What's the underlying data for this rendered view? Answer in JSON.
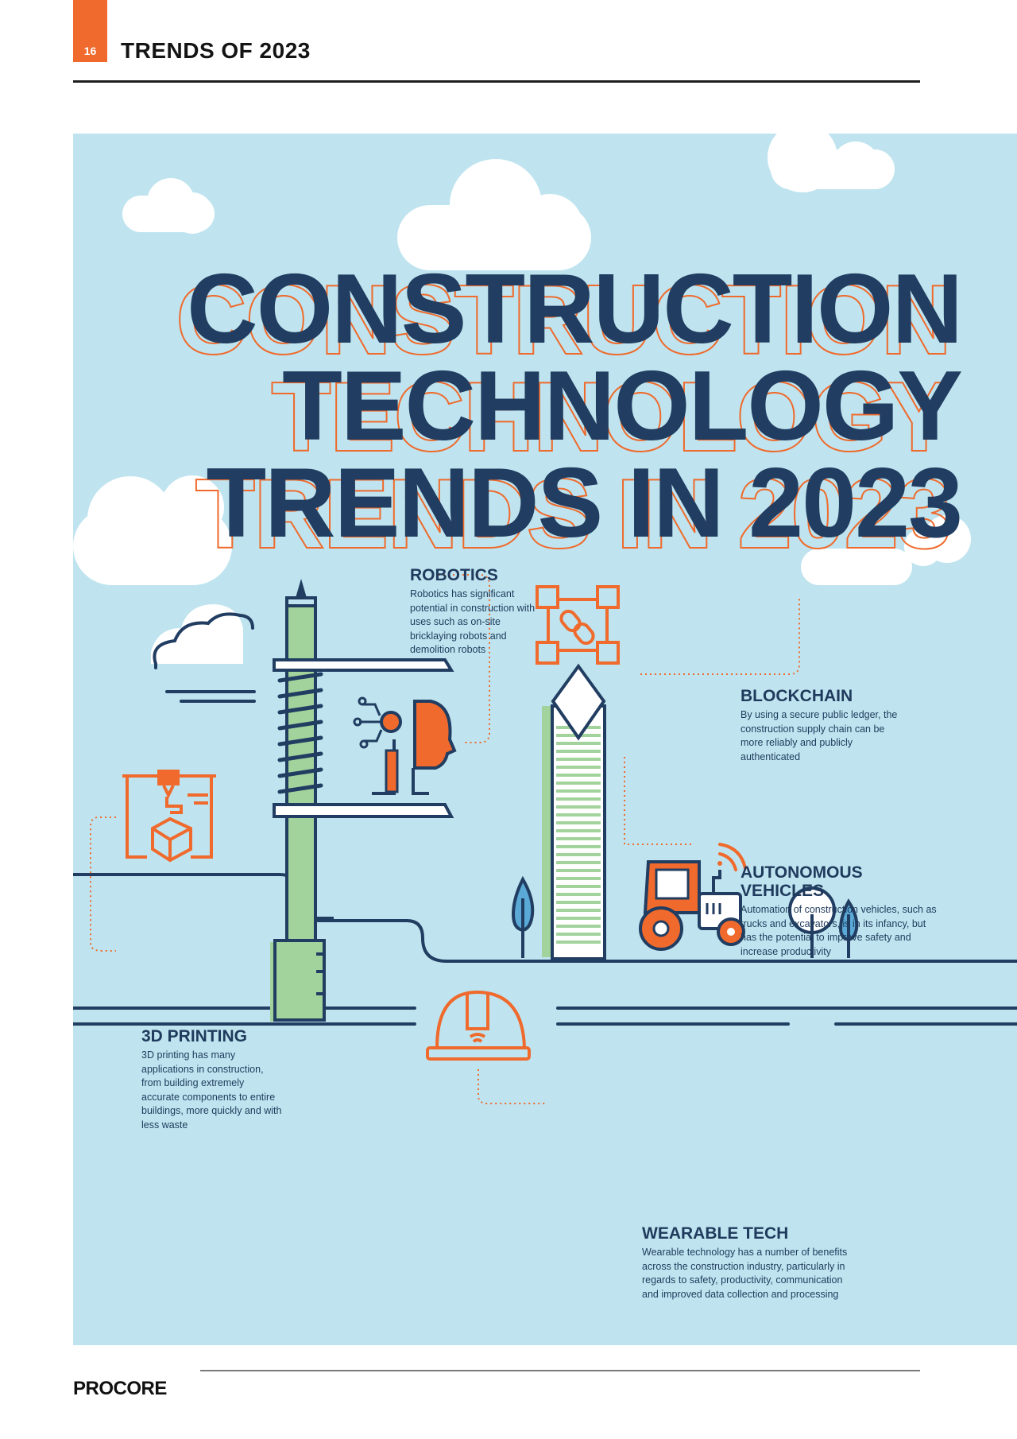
{
  "header": {
    "page_number": "16",
    "section_title": "TRENDS OF 2023"
  },
  "headline": {
    "line1": "CONSTRUCTION",
    "line2": "TECHNOLOGY",
    "line3": "TRENDS IN 2023"
  },
  "trends": {
    "robotics": {
      "title": "ROBOTICS",
      "text": "Robotics has significant potential in construction with uses such as on-site bricklaying robots and demolition robots"
    },
    "blockchain": {
      "title": "BLOCKCHAIN",
      "text": "By using a secure public ledger, the construction supply chain can be more reliably and publicly authenticated"
    },
    "autonomous": {
      "title_line1": "AUTONOMOUS",
      "title_line2": "VEHICLES",
      "text": "Automation of construction vehicles, such as trucks and excavators, is in its infancy, but has the potential to improve safety and increase productivity"
    },
    "printing": {
      "title": "3D PRINTING",
      "text": "3D printing has many applications in construction, from building extremely accurate components to entire buildings, more quickly and with less waste"
    },
    "wearable": {
      "title": "WEARABLE TECH",
      "text": "Wearable technology has a number of benefits across the construction industry, particularly in regards to safety, productivity, communication and improved data collection and processing"
    }
  },
  "footer": {
    "logo": "PROCORE"
  },
  "colors": {
    "accent": "#ef6a2c",
    "navy": "#213d61",
    "sky": "#bfe4ef",
    "green": "#a3d39c"
  },
  "icons": [
    "3d-printer-icon",
    "robot-head-icon",
    "blockchain-icon",
    "tractor-icon",
    "hard-hat-icon",
    "cloud-icon",
    "tree-icon"
  ]
}
